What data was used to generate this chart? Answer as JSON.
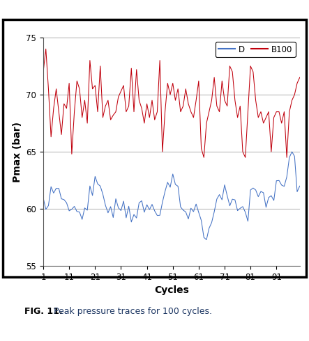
{
  "title_bold": "FIG. 11.",
  "title_rest": " Peak pressure traces for 100 cycles.",
  "xlabel": "Cycles",
  "ylabel": "Pmax (bar)",
  "ylim": [
    55,
    75
  ],
  "xlim": [
    1,
    100
  ],
  "xticks": [
    1,
    11,
    21,
    31,
    41,
    51,
    61,
    71,
    81,
    91
  ],
  "yticks": [
    55,
    60,
    65,
    70,
    75
  ],
  "D_color": "#4472C4",
  "B100_color": "#C0000C",
  "legend_labels": [
    "D",
    "B100"
  ],
  "figsize": [
    4.43,
    4.9
  ],
  "dpi": 100,
  "border_color": "#000000",
  "grid_color": "#a0a0a0",
  "caption_color": "#1F3864"
}
